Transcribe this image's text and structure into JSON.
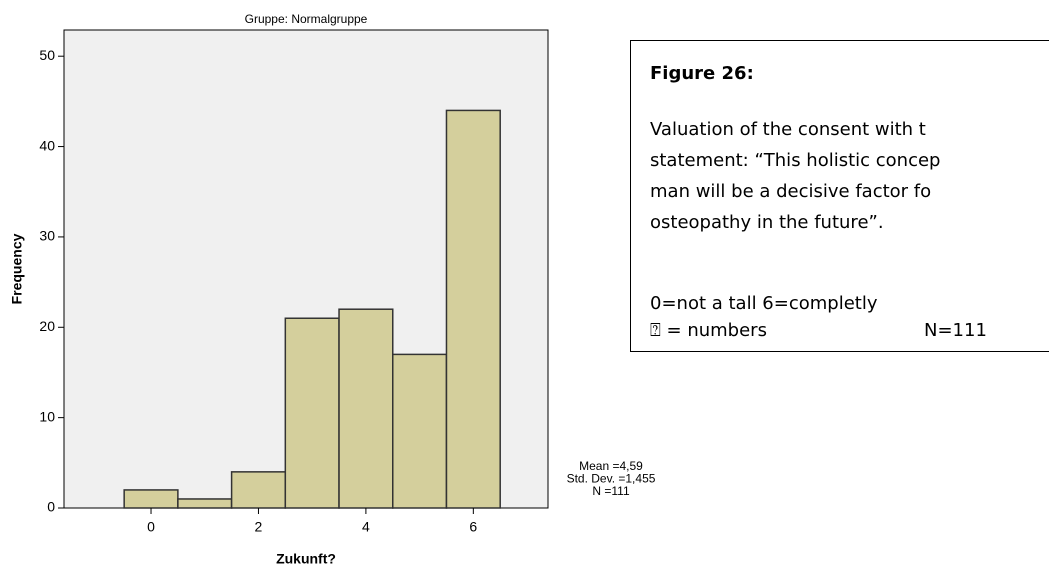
{
  "chart_data": {
    "type": "histogram",
    "title": "Gruppe: Normalgruppe",
    "x_label": "Zukunft?",
    "y_label": "Frequency",
    "bins": [
      -0.5,
      0.5,
      1.5,
      2.5,
      3.5,
      4.5,
      5.5,
      6.5
    ],
    "values": [
      2,
      1,
      4,
      21,
      22,
      17,
      44
    ],
    "color": "#d4cf9c",
    "edge_color": "#333333",
    "background": "#f0f0f0",
    "xlim": [
      -1.62,
      7.39
    ],
    "xticks": [
      0,
      2,
      4,
      6
    ],
    "ylim": [
      0,
      52.9
    ],
    "yticks": [
      0,
      10,
      20,
      30,
      40,
      50
    ],
    "stats": [
      "Mean =4,59",
      "Std. Dev. =1,455",
      "N =111"
    ]
  },
  "note": {
    "heading": "Figure 26:",
    "lines": [
      "Valuation of the consent with t",
      "statement: “This holistic concep",
      "man will be a decisive factor fo",
      "osteopathy in the future”."
    ],
    "legend": "0=not a tall 6=completly",
    "symbol_line": "⍰ = numbers",
    "n": "N=111"
  }
}
